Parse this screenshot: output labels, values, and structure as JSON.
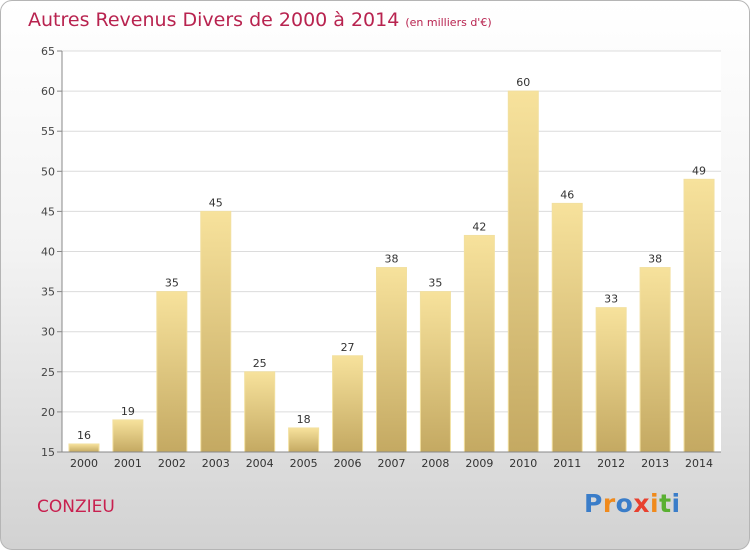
{
  "title": "Autres Revenus Divers de 2000 à 2014",
  "unit_note": "(en milliers d'€)",
  "commune": "CONZIEU",
  "logo": {
    "letters": [
      "P",
      "r",
      "o",
      "x",
      "i",
      "t",
      "i"
    ],
    "colors": [
      "#3a7dc9",
      "#f08a1c",
      "#3a7dc9",
      "#e8402f",
      "#f08a1c",
      "#5ab032",
      "#3a7dc9"
    ]
  },
  "colors": {
    "title": "#b8234f",
    "bar_light": "#f7e29c",
    "bar_dark": "#c4a962",
    "bar_edge": "#f2e0a0"
  },
  "chart_data": {
    "type": "bar",
    "title": "Autres Revenus Divers de 2000 à 2014",
    "xlabel": "",
    "ylabel": "",
    "categories": [
      "2000",
      "2001",
      "2002",
      "2003",
      "2004",
      "2005",
      "2006",
      "2007",
      "2008",
      "2009",
      "2010",
      "2011",
      "2012",
      "2013",
      "2014"
    ],
    "values": [
      16,
      19,
      35,
      45,
      25,
      18,
      27,
      38,
      35,
      42,
      60,
      46,
      33,
      38,
      49
    ],
    "ylim": [
      15,
      65
    ],
    "yticks": [
      15,
      20,
      25,
      30,
      35,
      40,
      45,
      50,
      55,
      60,
      65
    ],
    "grid": true,
    "data_labels": true
  }
}
